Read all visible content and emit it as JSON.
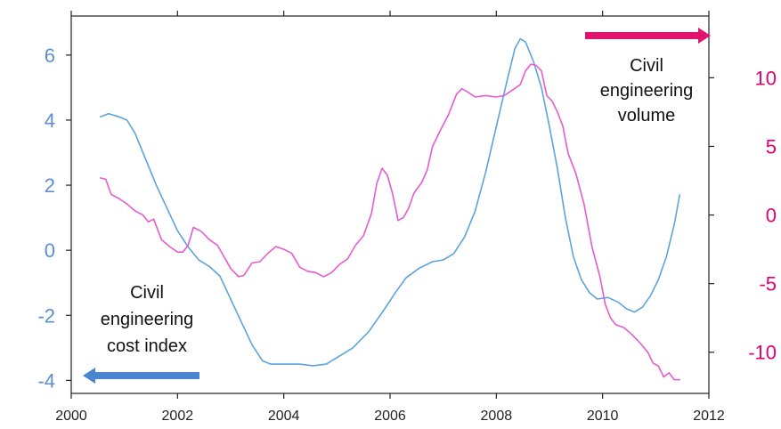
{
  "chart_data": {
    "type": "line",
    "xlim": [
      2000,
      2012
    ],
    "x_ticks": [
      "2000",
      "2002",
      "2004",
      "2006",
      "2008",
      "2010",
      "2012"
    ],
    "y_left": {
      "ylim": [
        -4.4,
        7.2
      ],
      "ticks": [
        "-4",
        "-2",
        "0",
        "2",
        "4",
        "6"
      ],
      "color": "#5b8fd1"
    },
    "y_right": {
      "ylim": [
        -13,
        14.5
      ],
      "ticks": [
        "-10",
        "-5",
        "0",
        "5",
        "10"
      ],
      "color": "#e3006f"
    },
    "grid": false,
    "series": [
      {
        "key": "cost",
        "axis": "left",
        "color": "#5fa3dc",
        "points": [
          [
            2000.55,
            4.1
          ],
          [
            2000.7,
            4.2
          ],
          [
            2000.9,
            4.1
          ],
          [
            2001.05,
            4.0
          ],
          [
            2001.2,
            3.6
          ],
          [
            2001.4,
            2.8
          ],
          [
            2001.6,
            2.0
          ],
          [
            2001.8,
            1.3
          ],
          [
            2002.0,
            0.6
          ],
          [
            2002.2,
            0.1
          ],
          [
            2002.4,
            -0.3
          ],
          [
            2002.6,
            -0.5
          ],
          [
            2002.8,
            -0.8
          ],
          [
            2003.0,
            -1.5
          ],
          [
            2003.2,
            -2.2
          ],
          [
            2003.4,
            -2.9
          ],
          [
            2003.6,
            -3.4
          ],
          [
            2003.75,
            -3.5
          ],
          [
            2004.0,
            -3.5
          ],
          [
            2004.3,
            -3.5
          ],
          [
            2004.55,
            -3.55
          ],
          [
            2004.8,
            -3.5
          ],
          [
            2005.0,
            -3.3
          ],
          [
            2005.3,
            -3.0
          ],
          [
            2005.6,
            -2.5
          ],
          [
            2005.9,
            -1.8
          ],
          [
            2006.1,
            -1.3
          ],
          [
            2006.3,
            -0.85
          ],
          [
            2006.55,
            -0.55
          ],
          [
            2006.8,
            -0.35
          ],
          [
            2007.0,
            -0.3
          ],
          [
            2007.2,
            -0.1
          ],
          [
            2007.4,
            0.4
          ],
          [
            2007.6,
            1.2
          ],
          [
            2007.8,
            2.4
          ],
          [
            2008.0,
            3.8
          ],
          [
            2008.2,
            5.2
          ],
          [
            2008.35,
            6.2
          ],
          [
            2008.45,
            6.5
          ],
          [
            2008.55,
            6.4
          ],
          [
            2008.7,
            5.8
          ],
          [
            2008.85,
            5.0
          ],
          [
            2009.0,
            3.8
          ],
          [
            2009.15,
            2.5
          ],
          [
            2009.3,
            1.0
          ],
          [
            2009.45,
            -0.2
          ],
          [
            2009.6,
            -0.9
          ],
          [
            2009.75,
            -1.3
          ],
          [
            2009.9,
            -1.5
          ],
          [
            2010.1,
            -1.45
          ],
          [
            2010.3,
            -1.6
          ],
          [
            2010.45,
            -1.8
          ],
          [
            2010.6,
            -1.9
          ],
          [
            2010.75,
            -1.75
          ],
          [
            2010.9,
            -1.4
          ],
          [
            2011.05,
            -0.9
          ],
          [
            2011.2,
            -0.2
          ],
          [
            2011.35,
            0.8
          ],
          [
            2011.45,
            1.7
          ]
        ]
      },
      {
        "key": "volume",
        "axis": "right",
        "color": "#e65bd0",
        "points": [
          [
            2000.55,
            2.7
          ],
          [
            2000.65,
            2.6
          ],
          [
            2000.75,
            1.5
          ],
          [
            2000.9,
            1.2
          ],
          [
            2001.05,
            0.8
          ],
          [
            2001.2,
            0.3
          ],
          [
            2001.35,
            0.0
          ],
          [
            2001.45,
            -0.5
          ],
          [
            2001.55,
            -0.3
          ],
          [
            2001.7,
            -1.8
          ],
          [
            2001.85,
            -2.3
          ],
          [
            2002.0,
            -2.7
          ],
          [
            2002.1,
            -2.7
          ],
          [
            2002.2,
            -2.2
          ],
          [
            2002.3,
            -0.9
          ],
          [
            2002.45,
            -1.2
          ],
          [
            2002.6,
            -1.8
          ],
          [
            2002.75,
            -2.2
          ],
          [
            2002.9,
            -3.2
          ],
          [
            2003.0,
            -3.9
          ],
          [
            2003.15,
            -4.5
          ],
          [
            2003.25,
            -4.4
          ],
          [
            2003.4,
            -3.5
          ],
          [
            2003.55,
            -3.4
          ],
          [
            2003.7,
            -2.8
          ],
          [
            2003.85,
            -2.3
          ],
          [
            2004.0,
            -2.5
          ],
          [
            2004.15,
            -2.8
          ],
          [
            2004.3,
            -3.8
          ],
          [
            2004.45,
            -4.1
          ],
          [
            2004.6,
            -4.2
          ],
          [
            2004.75,
            -4.5
          ],
          [
            2004.9,
            -4.2
          ],
          [
            2005.05,
            -3.6
          ],
          [
            2005.2,
            -3.2
          ],
          [
            2005.35,
            -2.2
          ],
          [
            2005.5,
            -1.5
          ],
          [
            2005.65,
            0.1
          ],
          [
            2005.75,
            2.3
          ],
          [
            2005.85,
            3.4
          ],
          [
            2005.95,
            2.9
          ],
          [
            2006.05,
            1.5
          ],
          [
            2006.15,
            -0.4
          ],
          [
            2006.25,
            -0.2
          ],
          [
            2006.35,
            0.5
          ],
          [
            2006.45,
            1.6
          ],
          [
            2006.6,
            2.4
          ],
          [
            2006.7,
            3.3
          ],
          [
            2006.8,
            5.0
          ],
          [
            2006.95,
            6.2
          ],
          [
            2007.1,
            7.3
          ],
          [
            2007.25,
            8.8
          ],
          [
            2007.35,
            9.2
          ],
          [
            2007.45,
            9.0
          ],
          [
            2007.6,
            8.6
          ],
          [
            2007.8,
            8.7
          ],
          [
            2008.0,
            8.6
          ],
          [
            2008.15,
            8.7
          ],
          [
            2008.3,
            9.1
          ],
          [
            2008.45,
            9.5
          ],
          [
            2008.55,
            10.5
          ],
          [
            2008.65,
            11.0
          ],
          [
            2008.75,
            10.9
          ],
          [
            2008.85,
            10.5
          ],
          [
            2008.95,
            8.7
          ],
          [
            2009.05,
            8.3
          ],
          [
            2009.15,
            7.5
          ],
          [
            2009.25,
            6.5
          ],
          [
            2009.35,
            4.5
          ],
          [
            2009.5,
            3.0
          ],
          [
            2009.65,
            0.8
          ],
          [
            2009.8,
            -2.3
          ],
          [
            2009.95,
            -4.5
          ],
          [
            2010.05,
            -6.5
          ],
          [
            2010.15,
            -7.5
          ],
          [
            2010.25,
            -8.0
          ],
          [
            2010.4,
            -8.2
          ],
          [
            2010.55,
            -8.7
          ],
          [
            2010.7,
            -9.3
          ],
          [
            2010.85,
            -10.0
          ],
          [
            2010.95,
            -10.8
          ],
          [
            2011.05,
            -11.0
          ],
          [
            2011.15,
            -11.8
          ],
          [
            2011.25,
            -11.5
          ],
          [
            2011.35,
            -12.0
          ],
          [
            2011.45,
            -12.0
          ]
        ]
      }
    ],
    "annotations": {
      "cost_label": [
        "Civil",
        "engineering",
        "cost index"
      ],
      "volume_label": [
        "Civil",
        "engineering",
        "volume"
      ]
    },
    "arrows": {
      "cost": {
        "color": "#4a86d0",
        "direction": "left"
      },
      "volume": {
        "color": "#e0156d",
        "direction": "right"
      }
    },
    "axis_color": "#222222"
  }
}
